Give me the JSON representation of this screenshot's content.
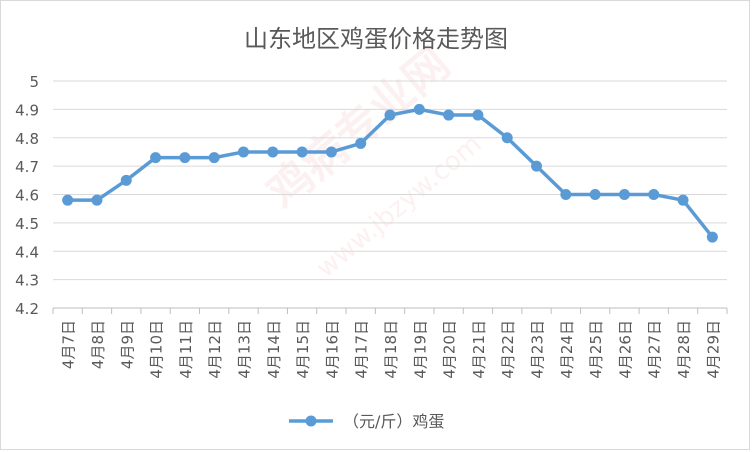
{
  "chart_data": {
    "type": "line",
    "title": "山东地区鸡蛋价格走势图",
    "xlabel": "",
    "ylabel": "",
    "categories": [
      "4月7日",
      "4月8日",
      "4月9日",
      "4月10日",
      "4月11日",
      "4月12日",
      "4月13日",
      "4月14日",
      "4月15日",
      "4月16日",
      "4月17日",
      "4月18日",
      "4月19日",
      "4月20日",
      "4月21日",
      "4月22日",
      "4月23日",
      "4月24日",
      "4月25日",
      "4月26日",
      "4月27日",
      "4月28日",
      "4月29日"
    ],
    "series": [
      {
        "name": "（元/斤）鸡蛋",
        "color": "#5b9bd5",
        "values": [
          4.58,
          4.58,
          4.65,
          4.73,
          4.73,
          4.73,
          4.75,
          4.75,
          4.75,
          4.75,
          4.78,
          4.88,
          4.9,
          4.88,
          4.88,
          4.8,
          4.7,
          4.6,
          4.6,
          4.6,
          4.6,
          4.58,
          4.45
        ]
      }
    ],
    "ylim": [
      4.2,
      5.0
    ],
    "yticks": [
      "4.2",
      "4.3",
      "4.4",
      "4.5",
      "4.6",
      "4.7",
      "4.8",
      "4.9",
      "5"
    ],
    "grid": true,
    "legend_position": "bottom",
    "watermark": [
      "鸡病专业网",
      "www.jbzyw.com"
    ]
  }
}
